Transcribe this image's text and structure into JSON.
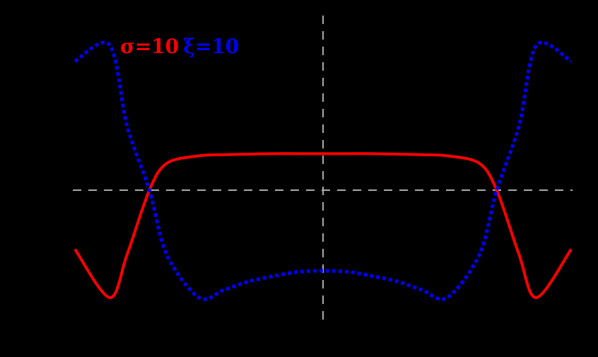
{
  "chart_data": {
    "type": "line",
    "title": "",
    "xlabel": "",
    "ylabel": "",
    "grid": false,
    "background": "#000000",
    "legend_position": "top-left",
    "reference_lines": {
      "vertical_x": 0,
      "horizontal_y": 0,
      "color": "#aaaaaa",
      "style": "dashed"
    },
    "x": [
      -1.0,
      -0.86,
      -0.79,
      -0.7,
      -0.63,
      -0.5,
      -0.4,
      -0.3,
      -0.2,
      -0.1,
      0.0,
      0.1,
      0.2,
      0.3,
      0.4,
      0.5,
      0.63,
      0.7,
      0.79,
      0.86,
      1.0
    ],
    "series": [
      {
        "name": "σ=10",
        "color": "#ff0000",
        "style": "solid",
        "values": [
          -0.55,
          -1.0,
          -0.6,
          0.0,
          0.25,
          0.32,
          0.33,
          0.335,
          0.34,
          0.34,
          0.34,
          0.34,
          0.34,
          0.335,
          0.33,
          0.32,
          0.25,
          0.0,
          -0.6,
          -1.0,
          -0.55
        ]
      },
      {
        "name": "ξ=10",
        "color": "#0000ff",
        "style": "dotted",
        "values": [
          1.2,
          1.35,
          0.6,
          0.0,
          -0.6,
          -1.0,
          -0.93,
          -0.85,
          -0.8,
          -0.76,
          -0.75,
          -0.76,
          -0.8,
          -0.85,
          -0.93,
          -1.0,
          -0.6,
          0.0,
          0.6,
          1.35,
          1.2
        ]
      }
    ]
  },
  "legend": {
    "sigma_label": "σ=10",
    "xi_label": "ξ=10",
    "sigma_color": "#ff0000",
    "xi_color": "#0000ff"
  }
}
